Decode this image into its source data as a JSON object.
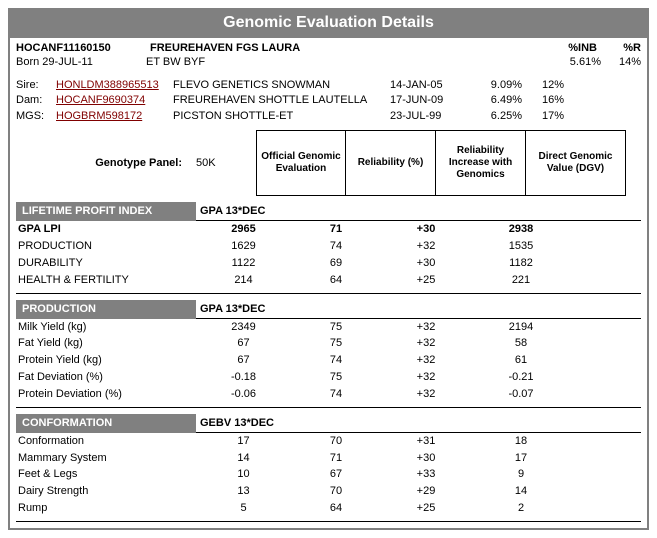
{
  "title": "Genomic Evaluation Details",
  "animal": {
    "id": "HOCANF11160150",
    "name": "FREUREHAVEN FGS LAURA",
    "born_label": "Born 29-JUL-11",
    "flags": "ET BW BYF",
    "inb_hdr": "%INB",
    "r_hdr": "%R",
    "inb": "5.61%",
    "r": "14%"
  },
  "pedigree": [
    {
      "label": "Sire:",
      "link": "HONLDM388965513",
      "name": "FLEVO GENETICS SNOWMAN",
      "date": "14-JAN-05",
      "inb": "9.09%",
      "r": "12%"
    },
    {
      "label": "Dam:",
      "link": "HOCANF9690374",
      "name": "FREUREHAVEN SHOTTLE LAUTELLA",
      "date": "17-JUN-09",
      "inb": "6.49%",
      "r": "16%"
    },
    {
      "label": "MGS:",
      "link": "HOGBRM598172",
      "name": "PICSTON SHOTTLE-ET",
      "date": "23-JUL-99",
      "inb": "6.25%",
      "r": "17%"
    }
  ],
  "panel": {
    "label": "Genotype Panel:",
    "value": "50K",
    "headers": [
      "Official Genomic Evaluation",
      "Reliability (%)",
      "Reliability Increase with Genomics",
      "Direct Genomic Value (DGV)"
    ]
  },
  "sections": [
    {
      "title": "LIFETIME PROFIT INDEX",
      "sub": "GPA 13*DEC",
      "rows": [
        {
          "bold": true,
          "label": "GPA LPI",
          "c": [
            "2965",
            "71",
            "+30",
            "2938"
          ]
        },
        {
          "bold": false,
          "label": "PRODUCTION",
          "c": [
            "1629",
            "74",
            "+32",
            "1535"
          ]
        },
        {
          "bold": false,
          "label": "DURABILITY",
          "c": [
            "1122",
            "69",
            "+30",
            "1182"
          ]
        },
        {
          "bold": false,
          "label": "HEALTH & FERTILITY",
          "c": [
            "214",
            "64",
            "+25",
            "221"
          ]
        }
      ]
    },
    {
      "title": "PRODUCTION",
      "sub": "GPA 13*DEC",
      "rows": [
        {
          "bold": false,
          "label": "Milk Yield (kg)",
          "c": [
            "2349",
            "75",
            "+32",
            "2194"
          ]
        },
        {
          "bold": false,
          "label": "Fat Yield (kg)",
          "c": [
            "67",
            "75",
            "+32",
            "58"
          ]
        },
        {
          "bold": false,
          "label": "Protein Yield (kg)",
          "c": [
            "67",
            "74",
            "+32",
            "61"
          ]
        },
        {
          "bold": false,
          "label": "Fat Deviation (%)",
          "c": [
            "-0.18",
            "75",
            "+32",
            "-0.21"
          ]
        },
        {
          "bold": false,
          "label": "Protein Deviation (%)",
          "c": [
            "-0.06",
            "74",
            "+32",
            "-0.07"
          ]
        }
      ]
    },
    {
      "title": "CONFORMATION",
      "sub": "GEBV 13*DEC",
      "rows": [
        {
          "bold": false,
          "label": "Conformation",
          "c": [
            "17",
            "70",
            "+31",
            "18"
          ]
        },
        {
          "bold": false,
          "label": "Mammary System",
          "c": [
            "14",
            "71",
            "+30",
            "17"
          ]
        },
        {
          "bold": false,
          "label": "Feet & Legs",
          "c": [
            "10",
            "67",
            "+33",
            "9"
          ]
        },
        {
          "bold": false,
          "label": "Dairy Strength",
          "c": [
            "13",
            "70",
            "+29",
            "14"
          ]
        },
        {
          "bold": false,
          "label": "Rump",
          "c": [
            "5",
            "64",
            "+25",
            "2"
          ]
        }
      ]
    }
  ]
}
